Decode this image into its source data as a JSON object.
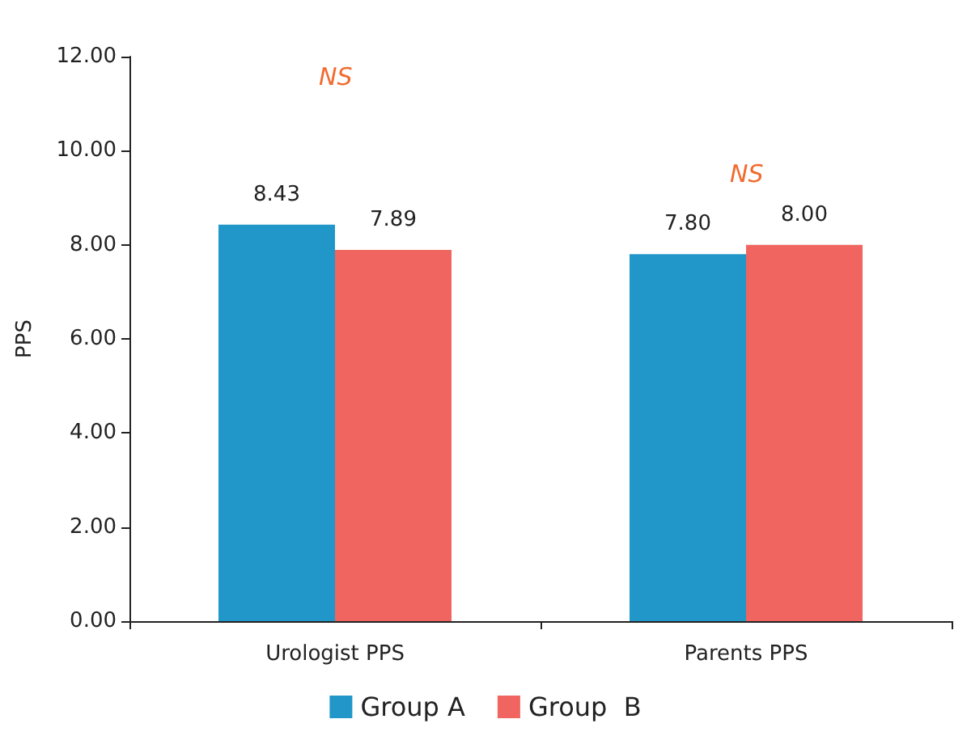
{
  "chart_data": {
    "type": "bar",
    "ylabel": "PPS",
    "categories": [
      "Urologist PPS",
      "Parents PPS"
    ],
    "series": [
      {
        "name": "Group A",
        "color": "#2196c8",
        "values": [
          8.43,
          7.8
        ],
        "value_labels": [
          "8.43",
          "7.80"
        ]
      },
      {
        "name": "Group  B",
        "color": "#f06560",
        "values": [
          7.89,
          8.0
        ],
        "value_labels": [
          "7.89",
          "8.00"
        ]
      }
    ],
    "ylim": [
      0,
      12
    ],
    "yticks": [
      {
        "value": 0,
        "label": "0.00"
      },
      {
        "value": 2,
        "label": "2.00"
      },
      {
        "value": 4,
        "label": "4.00"
      },
      {
        "value": 6,
        "label": "6.00"
      },
      {
        "value": 8,
        "label": "8.00"
      },
      {
        "value": 10,
        "label": "10.00"
      },
      {
        "value": 12,
        "label": "12.00"
      }
    ],
    "grid": false,
    "legend": "bottom",
    "annotations": [
      "NS",
      "NS"
    ]
  }
}
